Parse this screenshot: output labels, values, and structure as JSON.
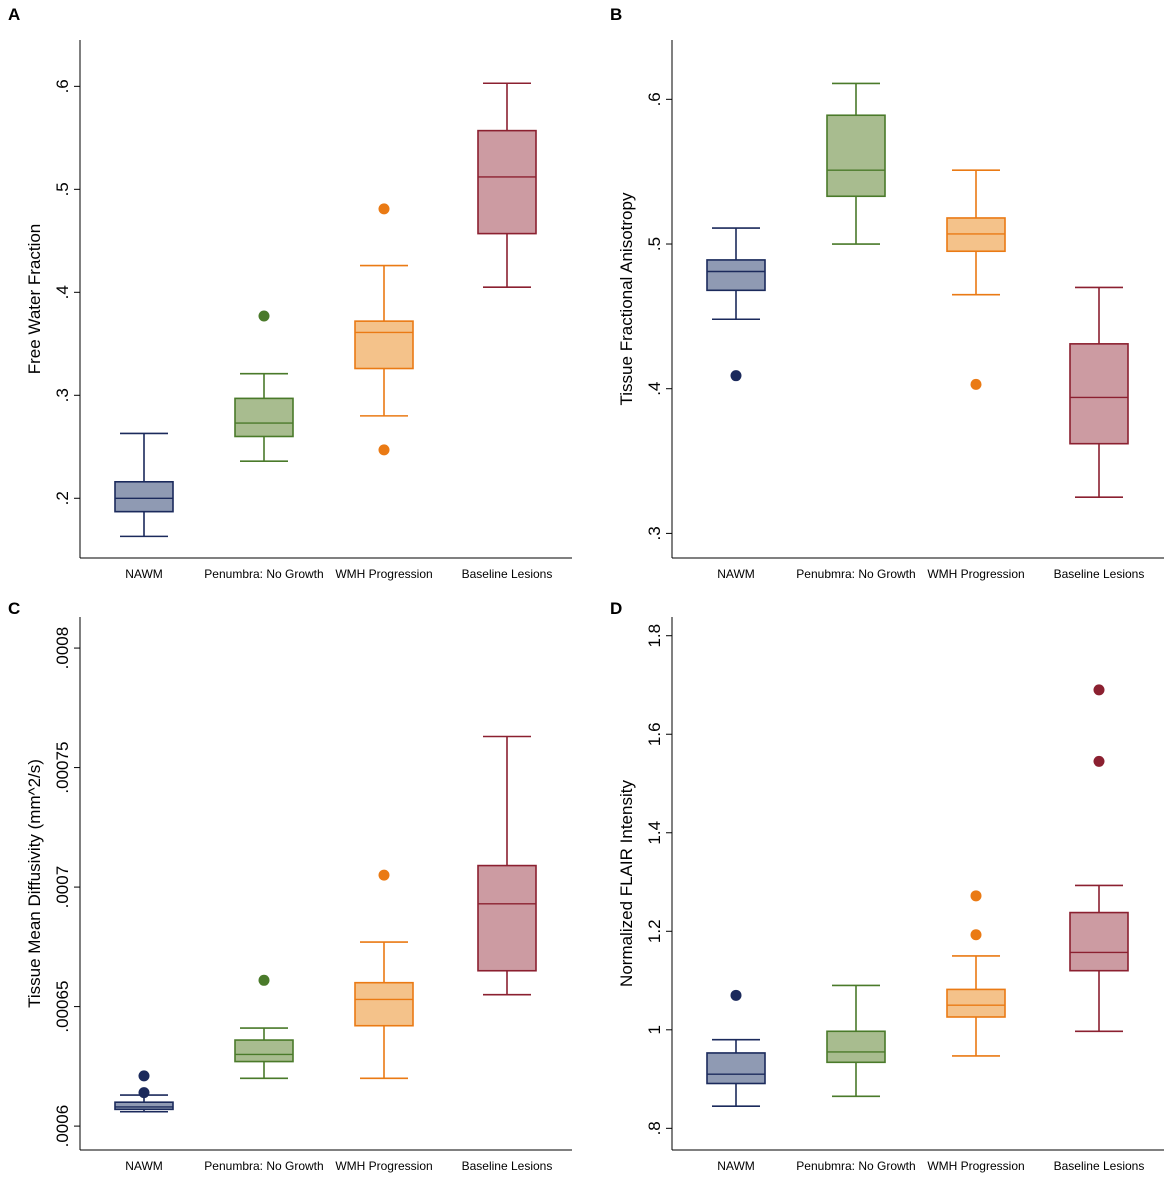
{
  "colors": {
    "NAWM": {
      "stroke": "#1b2a5c",
      "fill": "#8f9ab3"
    },
    "Penumbra": {
      "stroke": "#4a7a2a",
      "fill": "#a8bc8f"
    },
    "WMH": {
      "stroke": "#ea7a14",
      "fill": "#f4c28a"
    },
    "Baseline": {
      "stroke": "#8b2030",
      "fill": "#cc9ba2"
    }
  },
  "chart_data": [
    {
      "panel": "A",
      "type": "box",
      "ylabel": "Free Water Fraction",
      "ylim": [
        0.142,
        0.645
      ],
      "yticks": [
        0.2,
        0.3,
        0.4,
        0.5,
        0.6
      ],
      "ytick_labels": [
        ".2",
        ".3",
        ".4",
        ".5",
        ".6"
      ],
      "categories": [
        "NAWM",
        "Penumbra: No Growth",
        "WMH Progression",
        "Baseline Lesions"
      ],
      "boxes": [
        {
          "name": "NAWM",
          "color": "NAWM",
          "whisker_low": 0.163,
          "q1": 0.187,
          "median": 0.2,
          "q3": 0.216,
          "whisker_high": 0.263,
          "outliers": []
        },
        {
          "name": "Penumbra: No Growth",
          "color": "Penumbra",
          "whisker_low": 0.236,
          "q1": 0.26,
          "median": 0.273,
          "q3": 0.297,
          "whisker_high": 0.321,
          "outliers": [
            0.377
          ]
        },
        {
          "name": "WMH Progression",
          "color": "WMH",
          "whisker_low": 0.28,
          "q1": 0.326,
          "median": 0.361,
          "q3": 0.372,
          "whisker_high": 0.426,
          "outliers": [
            0.481,
            0.247
          ]
        },
        {
          "name": "Baseline Lesions",
          "color": "Baseline",
          "whisker_low": 0.405,
          "q1": 0.457,
          "median": 0.512,
          "q3": 0.557,
          "whisker_high": 0.603,
          "outliers": []
        }
      ]
    },
    {
      "panel": "B",
      "type": "box",
      "ylabel": "Tissue Fractional Anisotropy",
      "ylim": [
        0.283,
        0.641
      ],
      "yticks": [
        0.3,
        0.4,
        0.5,
        0.6
      ],
      "ytick_labels": [
        ".3",
        ".4",
        ".5",
        ".6"
      ],
      "categories": [
        "NAWM",
        "Penubmra: No Growth",
        "WMH Progression",
        "Baseline Lesions"
      ],
      "boxes": [
        {
          "name": "NAWM",
          "color": "NAWM",
          "whisker_low": 0.448,
          "q1": 0.468,
          "median": 0.481,
          "q3": 0.489,
          "whisker_high": 0.511,
          "outliers": [
            0.409
          ]
        },
        {
          "name": "Penubmra: No Growth",
          "color": "Penumbra",
          "whisker_low": 0.5,
          "q1": 0.533,
          "median": 0.551,
          "q3": 0.589,
          "whisker_high": 0.611,
          "outliers": []
        },
        {
          "name": "WMH Progression",
          "color": "WMH",
          "whisker_low": 0.465,
          "q1": 0.495,
          "median": 0.507,
          "q3": 0.518,
          "whisker_high": 0.551,
          "outliers": [
            0.403
          ]
        },
        {
          "name": "Baseline Lesions",
          "color": "Baseline",
          "whisker_low": 0.325,
          "q1": 0.362,
          "median": 0.394,
          "q3": 0.431,
          "whisker_high": 0.47,
          "outliers": []
        }
      ]
    },
    {
      "panel": "C",
      "type": "box",
      "ylabel": "Tissue Mean Diffusivity (mm^2/s)",
      "ylim": [
        0.00059,
        0.000813
      ],
      "yticks": [
        0.0006,
        0.00065,
        0.0007,
        0.00075,
        0.0008
      ],
      "ytick_labels": [
        ".0006",
        ".00065",
        ".0007",
        ".00075",
        ".0008"
      ],
      "categories": [
        "NAWM",
        "Penumbra: No Growth",
        "WMH Progression",
        "Baseline Lesions"
      ],
      "boxes": [
        {
          "name": "NAWM",
          "color": "NAWM",
          "whisker_low": 0.000606,
          "q1": 0.000607,
          "median": 0.000608,
          "q3": 0.00061,
          "whisker_high": 0.000613,
          "outliers": [
            0.000621,
            0.000614
          ]
        },
        {
          "name": "Penumbra: No Growth",
          "color": "Penumbra",
          "whisker_low": 0.00062,
          "q1": 0.000627,
          "median": 0.00063,
          "q3": 0.000636,
          "whisker_high": 0.000641,
          "outliers": [
            0.000661
          ]
        },
        {
          "name": "WMH Progression",
          "color": "WMH",
          "whisker_low": 0.00062,
          "q1": 0.000642,
          "median": 0.000653,
          "q3": 0.00066,
          "whisker_high": 0.000677,
          "outliers": [
            0.000705
          ]
        },
        {
          "name": "Baseline Lesions",
          "color": "Baseline",
          "whisker_low": 0.000655,
          "q1": 0.000665,
          "median": 0.000693,
          "q3": 0.000709,
          "whisker_high": 0.000763,
          "outliers": []
        }
      ]
    },
    {
      "panel": "D",
      "type": "box",
      "ylabel": "Normalized FLAIR Intensity",
      "ylim": [
        0.756,
        1.838
      ],
      "yticks": [
        0.8,
        1.0,
        1.2,
        1.4,
        1.6,
        1.8
      ],
      "ytick_labels": [
        ".8",
        "1",
        "1.2",
        "1.4",
        "1.6",
        "1.8"
      ],
      "categories": [
        "NAWM",
        "Penubmra: No Growth",
        "WMH Progression",
        "Baseline Lesions"
      ],
      "boxes": [
        {
          "name": "NAWM",
          "color": "NAWM",
          "whisker_low": 0.845,
          "q1": 0.891,
          "median": 0.91,
          "q3": 0.953,
          "whisker_high": 0.98,
          "outliers": [
            1.07
          ]
        },
        {
          "name": "Penubmra: No Growth",
          "color": "Penumbra",
          "whisker_low": 0.865,
          "q1": 0.934,
          "median": 0.955,
          "q3": 0.997,
          "whisker_high": 1.09,
          "outliers": []
        },
        {
          "name": "WMH Progression",
          "color": "WMH",
          "whisker_low": 0.947,
          "q1": 1.026,
          "median": 1.05,
          "q3": 1.082,
          "whisker_high": 1.15,
          "outliers": [
            1.272,
            1.193
          ]
        },
        {
          "name": "Baseline Lesions",
          "color": "Baseline",
          "whisker_low": 0.997,
          "q1": 1.12,
          "median": 1.157,
          "q3": 1.238,
          "whisker_high": 1.293,
          "outliers": [
            1.69,
            1.545
          ]
        }
      ]
    }
  ]
}
